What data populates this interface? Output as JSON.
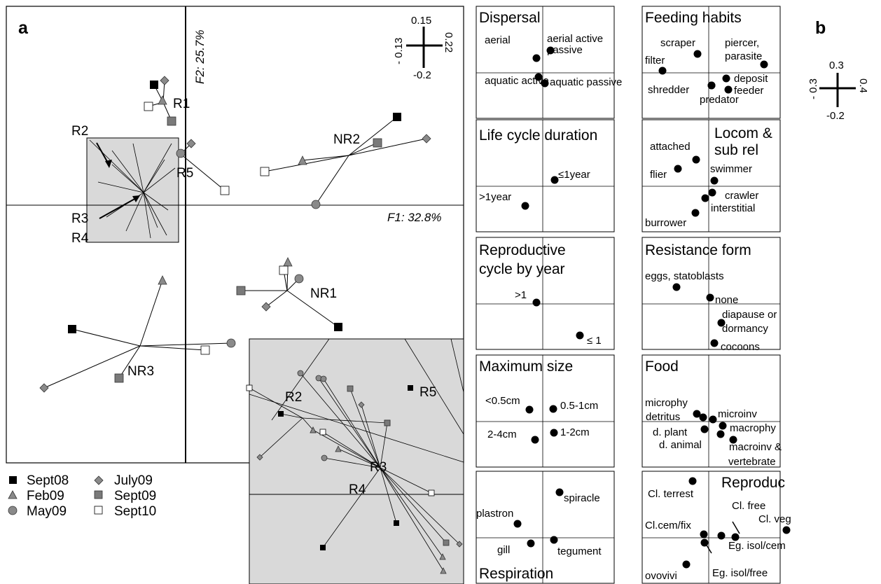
{
  "panel_a": {
    "letter": "a",
    "x_axis_label": "F1: 32.8%",
    "y_axis_label": "F2: 25.7%",
    "scale_bar": {
      "top": "0.15",
      "bottom": "-0.2",
      "left": "- 0.13",
      "right": "0.22"
    },
    "site_labels": [
      "R1",
      "R2",
      "R3",
      "R4",
      "R5",
      "NR1",
      "NR2",
      "NR3"
    ],
    "inset_labels": [
      "R2",
      "R3",
      "R4",
      "R5"
    ]
  },
  "legend": [
    {
      "label": "Sept08",
      "marker": "filled-square",
      "color": "#000000"
    },
    {
      "label": "July09",
      "marker": "diamond",
      "color": "#8a8a8a"
    },
    {
      "label": "Feb09",
      "marker": "triangle",
      "color": "#8a8a8a"
    },
    {
      "label": "Sept09",
      "marker": "square",
      "color": "#7a7a7a"
    },
    {
      "label": "May09",
      "marker": "circle",
      "color": "#8a8a8a"
    },
    {
      "label": "Sept10",
      "marker": "open-square",
      "color": "#ffffff"
    }
  ],
  "panel_b": {
    "letter": "b",
    "scale_bar": {
      "top": "0.3",
      "bottom": "-0.2",
      "left": "- 0.3",
      "right": "0.4"
    },
    "traits": [
      {
        "title": "Dispersal",
        "items": [
          "aerial active",
          "aerial passive",
          "aquatic active",
          "aquatic passive"
        ]
      },
      {
        "title": "Feeding habits",
        "items": [
          "scraper",
          "piercer, parasite",
          "filter",
          "deposit",
          "feeder",
          "shredder",
          "predator"
        ]
      },
      {
        "title": "Life cycle duration",
        "items": [
          "≤1year",
          ">1year"
        ]
      },
      {
        "title": "Locom & sub rel",
        "items": [
          "attached",
          "swimmer",
          "flier",
          "crawler",
          "interstitial",
          "burrower"
        ]
      },
      {
        "title": "Reproductive cycle by year",
        "items": [
          ">1",
          "≤ 1"
        ]
      },
      {
        "title": "Resistance form",
        "items": [
          "eggs, statoblasts",
          "none",
          "diapause or dormancy",
          "cocoons"
        ]
      },
      {
        "title": "Maximum size",
        "items": [
          "<0.5cm",
          "0.5-1cm",
          "2-4cm",
          "1-2cm"
        ]
      },
      {
        "title": "Food",
        "items": [
          "microphy",
          "detritus",
          "microinv",
          "d. plant",
          "macrophy",
          "d. animal",
          "macroinv & vertebrate"
        ]
      },
      {
        "title": "Respiration",
        "items": [
          "spiracle",
          "plastron",
          "gill",
          "tegument"
        ]
      },
      {
        "title": "Reproduc",
        "items": [
          "Cl. terrest",
          "Cl. free",
          "Cl. veg",
          "Cl.cem/fix",
          "Eg. isol/cem",
          "ovovivi",
          "Eg. isol/free"
        ]
      }
    ]
  },
  "chart_data": [
    {
      "type": "scatter",
      "title": "",
      "xlabel": "F1: 32.8%",
      "ylabel": "F2: 25.7%",
      "series": [
        {
          "name": "Sept08",
          "marker": "filled-square"
        },
        {
          "name": "Feb09",
          "marker": "triangle"
        },
        {
          "name": "May09",
          "marker": "circle"
        },
        {
          "name": "July09",
          "marker": "diamond"
        },
        {
          "name": "Sept09",
          "marker": "square"
        },
        {
          "name": "Sept10",
          "marker": "open-square"
        }
      ],
      "groups": [
        "R1",
        "R2",
        "R3",
        "R4",
        "R5",
        "NR1",
        "NR2",
        "NR3"
      ]
    },
    {
      "type": "scatter",
      "title": "",
      "panels": [
        "Dispersal",
        "Feeding habits",
        "Life cycle duration",
        "Locom & sub rel",
        "Reproductive cycle by year",
        "Resistance form",
        "Maximum size",
        "Food",
        "Respiration",
        "Reproduc"
      ]
    }
  ]
}
